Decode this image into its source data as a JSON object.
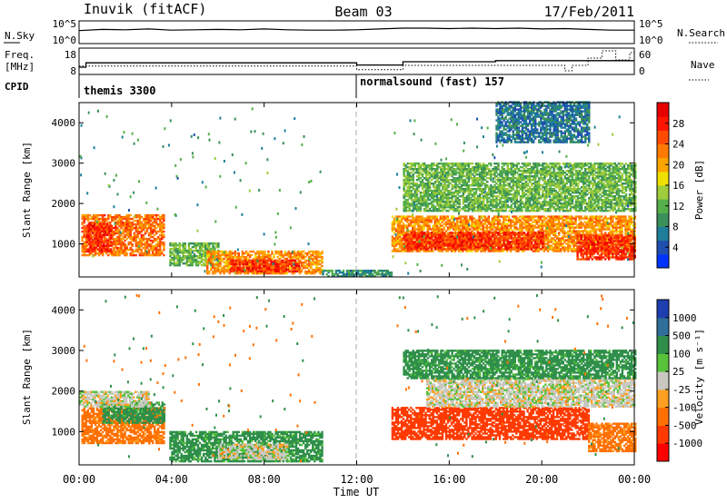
{
  "header": {
    "station": "Inuvik (fitACF)",
    "beam": "Beam 03",
    "date": "17/Feb/2011"
  },
  "top_panels": {
    "nsky_label": "N.Sky",
    "nsky_ticks": [
      "10^5",
      "10^0"
    ],
    "nsearch_label": "N.Search",
    "nsearch_ticks": [
      "10^5",
      "10^0"
    ],
    "freq_label": "Freq.",
    "freq_unit": "[MHz]",
    "freq_ticks": [
      "18",
      "8"
    ],
    "nave_label": "Nave",
    "nave_ticks": [
      "60",
      "0"
    ],
    "cpid_label": "CPID",
    "cpid_segments": [
      {
        "name": "themis 3300",
        "start_hour": 0.0
      },
      {
        "name": "normalsound (fast) 157",
        "start_hour": 12.0
      }
    ]
  },
  "time_axis": {
    "label": "Time UT",
    "ticks": [
      "00:00",
      "04:00",
      "08:00",
      "12:00",
      "16:00",
      "20:00",
      "00:00"
    ]
  },
  "range_axis": {
    "label": "Slant Range [km]",
    "ticks": [
      "1000",
      "2000",
      "3000",
      "4000"
    ]
  },
  "power_scale": {
    "label": "Power [dB]",
    "ticks": [
      "4",
      "8",
      "12",
      "16",
      "20",
      "24",
      "28"
    ],
    "colors": [
      "#0033ff",
      "#1f4fb0",
      "#1f7f9a",
      "#3a8f5a",
      "#55b04a",
      "#9fcc3a",
      "#f0e000",
      "#ffa500",
      "#ff7a00",
      "#ff4a00",
      "#ff1500",
      "#e60000"
    ]
  },
  "velocity_scale": {
    "label": "Velocity [m s⁻¹]",
    "ticks": [
      "1000",
      "500",
      "100",
      "25",
      "-25",
      "-100",
      "-500",
      "-1000"
    ],
    "colors": [
      "#1f3fb0",
      "#2f6f9a",
      "#2f8f4a",
      "#57c23a",
      "#c8c8c0",
      "#ffa020",
      "#ff7000",
      "#ff3a00",
      "#ff0000"
    ]
  },
  "chart_data": [
    {
      "type": "line",
      "title": "N.Sky / N.Search",
      "x": [
        0,
        1,
        2,
        3,
        4,
        5,
        6,
        7,
        8,
        9,
        10,
        11,
        12,
        13,
        14,
        15,
        16,
        17,
        18,
        19,
        20,
        21,
        22,
        23,
        24
      ],
      "series": [
        {
          "name": "N.Sky",
          "values": [
            2.8,
            3.1,
            3.0,
            3.2,
            2.9,
            3.0,
            3.1,
            3.0,
            3.2,
            3.0,
            2.9,
            2.9,
            3.0,
            3.2,
            3.4,
            3.4,
            3.3,
            3.4,
            3.3,
            3.4,
            3.2,
            3.3,
            3.1,
            2.9,
            2.9
          ]
        }
      ],
      "xlim": [
        0,
        24
      ],
      "ylim": [
        0,
        5
      ]
    },
    {
      "type": "line",
      "title": "Freq. / Nave",
      "x": [
        0,
        0.3,
        12.0,
        14.0,
        18.0,
        21.0,
        21.3,
        22.0,
        22.6,
        23.2,
        23.8,
        24.0
      ],
      "series": [
        {
          "name": "Freq.",
          "values": [
            10.5,
            12.5,
            11.5,
            13.0,
            13.5,
            13.5,
            13.5,
            13.5,
            13.5,
            13.5,
            13.5,
            13.5
          ]
        },
        {
          "name": "Nave",
          "values": [
            18,
            18,
            8,
            20,
            20,
            5,
            20,
            40,
            60,
            35,
            55,
            55
          ]
        }
      ],
      "xlim": [
        0,
        24
      ]
    },
    {
      "type": "heatmap",
      "title": "Power",
      "xlabel": "Time UT",
      "ylabel": "Slant Range [km]",
      "xlim": [
        0,
        24
      ],
      "ylim": [
        180,
        4500
      ],
      "colorbar": "Power [dB]",
      "regions": [
        {
          "t0": 0.1,
          "t1": 3.7,
          "r0": 700,
          "r1": 1700,
          "level": 24
        },
        {
          "t0": 0.3,
          "t1": 1.4,
          "r0": 800,
          "r1": 1500,
          "level": 28
        },
        {
          "t0": 3.9,
          "t1": 6.0,
          "r0": 450,
          "r1": 1000,
          "level": 12
        },
        {
          "t0": 5.5,
          "t1": 10.5,
          "r0": 250,
          "r1": 800,
          "level": 22
        },
        {
          "t0": 6.5,
          "t1": 9.5,
          "r0": 300,
          "r1": 600,
          "level": 28
        },
        {
          "t0": 10.5,
          "t1": 13.5,
          "r0": 180,
          "r1": 350,
          "level": 8
        },
        {
          "t0": 13.5,
          "t1": 24.0,
          "r0": 800,
          "r1": 1700,
          "level": 22
        },
        {
          "t0": 14.0,
          "t1": 20.0,
          "r0": 850,
          "r1": 1300,
          "level": 28
        },
        {
          "t0": 21.5,
          "t1": 24.0,
          "r0": 600,
          "r1": 1200,
          "level": 28
        },
        {
          "t0": 14.0,
          "t1": 24.0,
          "r0": 1800,
          "r1": 3000,
          "level": 12
        },
        {
          "t0": 18.0,
          "t1": 22.0,
          "r0": 3500,
          "r1": 4500,
          "level": 6
        }
      ]
    },
    {
      "type": "heatmap",
      "title": "Velocity",
      "xlabel": "Time UT",
      "ylabel": "Slant Range [km]",
      "xlim": [
        0,
        24
      ],
      "ylim": [
        180,
        4500
      ],
      "colorbar": "Velocity [m s⁻¹]",
      "regions": [
        {
          "t0": 0.1,
          "t1": 3.7,
          "r0": 700,
          "r1": 1600,
          "level": -100
        },
        {
          "t0": 1.0,
          "t1": 3.7,
          "r0": 1200,
          "r1": 1700,
          "level": 100
        },
        {
          "t0": 0.0,
          "t1": 3.0,
          "r0": 1600,
          "r1": 2000,
          "level": 0
        },
        {
          "t0": 3.9,
          "t1": 10.5,
          "r0": 250,
          "r1": 1000,
          "level": 100
        },
        {
          "t0": 6.0,
          "t1": 9.0,
          "r0": 300,
          "r1": 700,
          "level": 0
        },
        {
          "t0": 13.5,
          "t1": 22.0,
          "r0": 800,
          "r1": 1600,
          "level": -500
        },
        {
          "t0": 15.0,
          "t1": 24.0,
          "r0": 1600,
          "r1": 2300,
          "level": 0
        },
        {
          "t0": 22.0,
          "t1": 24.0,
          "r0": 500,
          "r1": 1200,
          "level": -100
        },
        {
          "t0": 14.0,
          "t1": 24.0,
          "r0": 2300,
          "r1": 3000,
          "level": 100
        }
      ]
    }
  ]
}
